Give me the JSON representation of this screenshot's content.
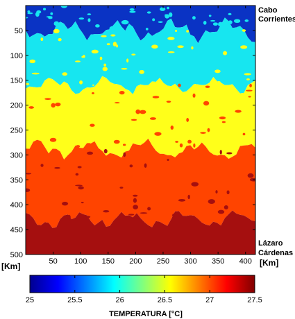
{
  "chart_data": {
    "type": "heatmap",
    "x_ticks": [
      50,
      100,
      150,
      200,
      250,
      300,
      350,
      400
    ],
    "y_ticks": [
      50,
      100,
      150,
      200,
      250,
      300,
      350,
      400,
      450,
      500
    ],
    "xlim": [
      0,
      418
    ],
    "ylim": [
      0,
      500
    ],
    "x_unit": "[Km]",
    "y_unit": "[Km]",
    "place_top": [
      "Cabo",
      "Corrientes"
    ],
    "place_bottom": [
      "Lázaro",
      "Cárdenas"
    ],
    "colorbar": {
      "label": "TEMPERATURA [°C]",
      "range": [
        25,
        27.5
      ],
      "ticks": [
        "25",
        "25.5",
        "26",
        "26.5",
        "27",
        "27.5"
      ]
    },
    "bands": [
      {
        "temp": 25.0,
        "color": "#0a33c4",
        "y_from": 0,
        "y_to": 50
      },
      {
        "temp": 25.9,
        "color": "#17e6f0",
        "y_from": 50,
        "y_to": 160
      },
      {
        "temp": 26.6,
        "color": "#ffff1a",
        "y_from": 160,
        "y_to": 290
      },
      {
        "temp": 27.1,
        "color": "#ff4400",
        "y_from": 290,
        "y_to": 430
      },
      {
        "temp": 27.5,
        "color": "#a50f0f",
        "y_from": 430,
        "y_to": 500
      }
    ]
  }
}
